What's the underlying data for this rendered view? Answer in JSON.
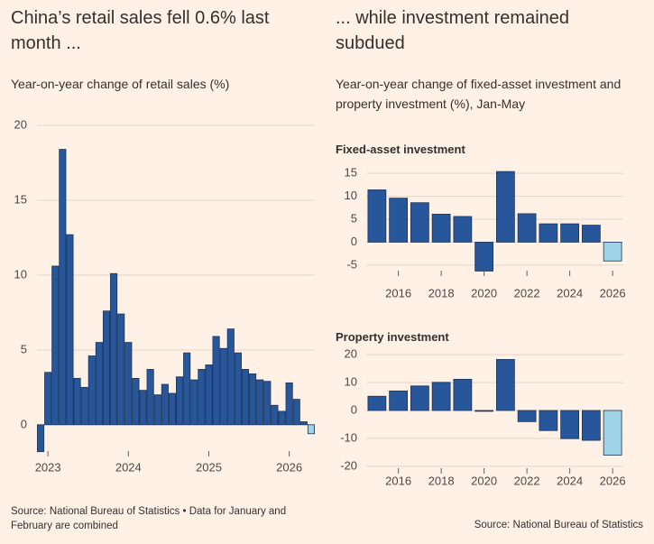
{
  "chart_data": [
    {
      "type": "bar",
      "title": "China’s retail sales fell 0.6% last month ...",
      "subtitle": "Year-on-year change of retail sales (%)",
      "source": "Source: National Bureau of Statistics • Data for January and February are combined",
      "categories": [
        null,
        "2023",
        null,
        null,
        null,
        null,
        null,
        null,
        null,
        null,
        null,
        null,
        "2024",
        null,
        null,
        null,
        null,
        null,
        null,
        null,
        null,
        null,
        null,
        "2025",
        null,
        null,
        null,
        null,
        null,
        null,
        null,
        null,
        null,
        null,
        "2026",
        null,
        null,
        null
      ],
      "values": [
        -1.8,
        3.5,
        10.6,
        18.4,
        12.7,
        3.1,
        2.5,
        4.6,
        5.5,
        7.6,
        10.1,
        7.4,
        5.5,
        3.1,
        2.3,
        3.7,
        2.0,
        2.7,
        2.1,
        3.2,
        4.8,
        3.0,
        3.7,
        4.0,
        5.9,
        5.1,
        6.4,
        4.8,
        3.7,
        3.4,
        3.0,
        2.9,
        1.3,
        0.9,
        2.8,
        1.7,
        0.2,
        -0.6
      ],
      "colors": [
        "#27579a",
        "#27579a",
        "#27579a",
        "#27579a",
        "#27579a",
        "#27579a",
        "#27579a",
        "#27579a",
        "#27579a",
        "#27579a",
        "#27579a",
        "#27579a",
        "#27579a",
        "#27579a",
        "#27579a",
        "#27579a",
        "#27579a",
        "#27579a",
        "#27579a",
        "#27579a",
        "#27579a",
        "#27579a",
        "#27579a",
        "#27579a",
        "#27579a",
        "#27579a",
        "#27579a",
        "#27579a",
        "#27579a",
        "#27579a",
        "#27579a",
        "#27579a",
        "#27579a",
        "#27579a",
        "#27579a",
        "#27579a",
        "#27579a",
        "#9fd4e8"
      ],
      "ylim": [
        -2,
        20
      ],
      "yticks": [
        0,
        5,
        10,
        15,
        20
      ],
      "grid": true
    },
    {
      "type": "bar",
      "title": "... while investment remained subdued",
      "subtitle": "Year-on-year change of fixed-asset investment and property investment (%), Jan-May",
      "panel_title": "Fixed-asset investment",
      "categories": [
        null,
        "2016",
        null,
        "2018",
        null,
        "2020",
        null,
        "2022",
        null,
        "2024",
        null,
        "2026"
      ],
      "values": [
        11.4,
        9.6,
        8.6,
        6.1,
        5.6,
        -6.3,
        15.4,
        6.2,
        4.0,
        4.0,
        3.7,
        -4.1
      ],
      "colors": [
        "#27579a",
        "#27579a",
        "#27579a",
        "#27579a",
        "#27579a",
        "#27579a",
        "#27579a",
        "#27579a",
        "#27579a",
        "#27579a",
        "#27579a",
        "#9fd4e8"
      ],
      "ylim": [
        -7,
        17
      ],
      "yticks": [
        -5,
        0,
        5,
        10,
        15
      ],
      "grid": true
    },
    {
      "type": "bar",
      "panel_title": "Property investment",
      "source": "Source: National Bureau of Statistics",
      "categories": [
        null,
        "2016",
        null,
        "2018",
        null,
        "2020",
        null,
        "2022",
        null,
        "2024",
        null,
        "2026"
      ],
      "values": [
        5.1,
        7.0,
        8.8,
        10.1,
        11.2,
        -0.3,
        18.3,
        -4.0,
        -7.2,
        -10.1,
        -10.7,
        -16.0
      ],
      "colors": [
        "#27579a",
        "#27579a",
        "#27579a",
        "#27579a",
        "#27579a",
        "#27579a",
        "#27579a",
        "#27579a",
        "#27579a",
        "#27579a",
        "#27579a",
        "#9fd4e8"
      ],
      "ylim": [
        -22,
        22
      ],
      "yticks": [
        -20,
        -10,
        0,
        10,
        20
      ],
      "grid": true
    }
  ]
}
